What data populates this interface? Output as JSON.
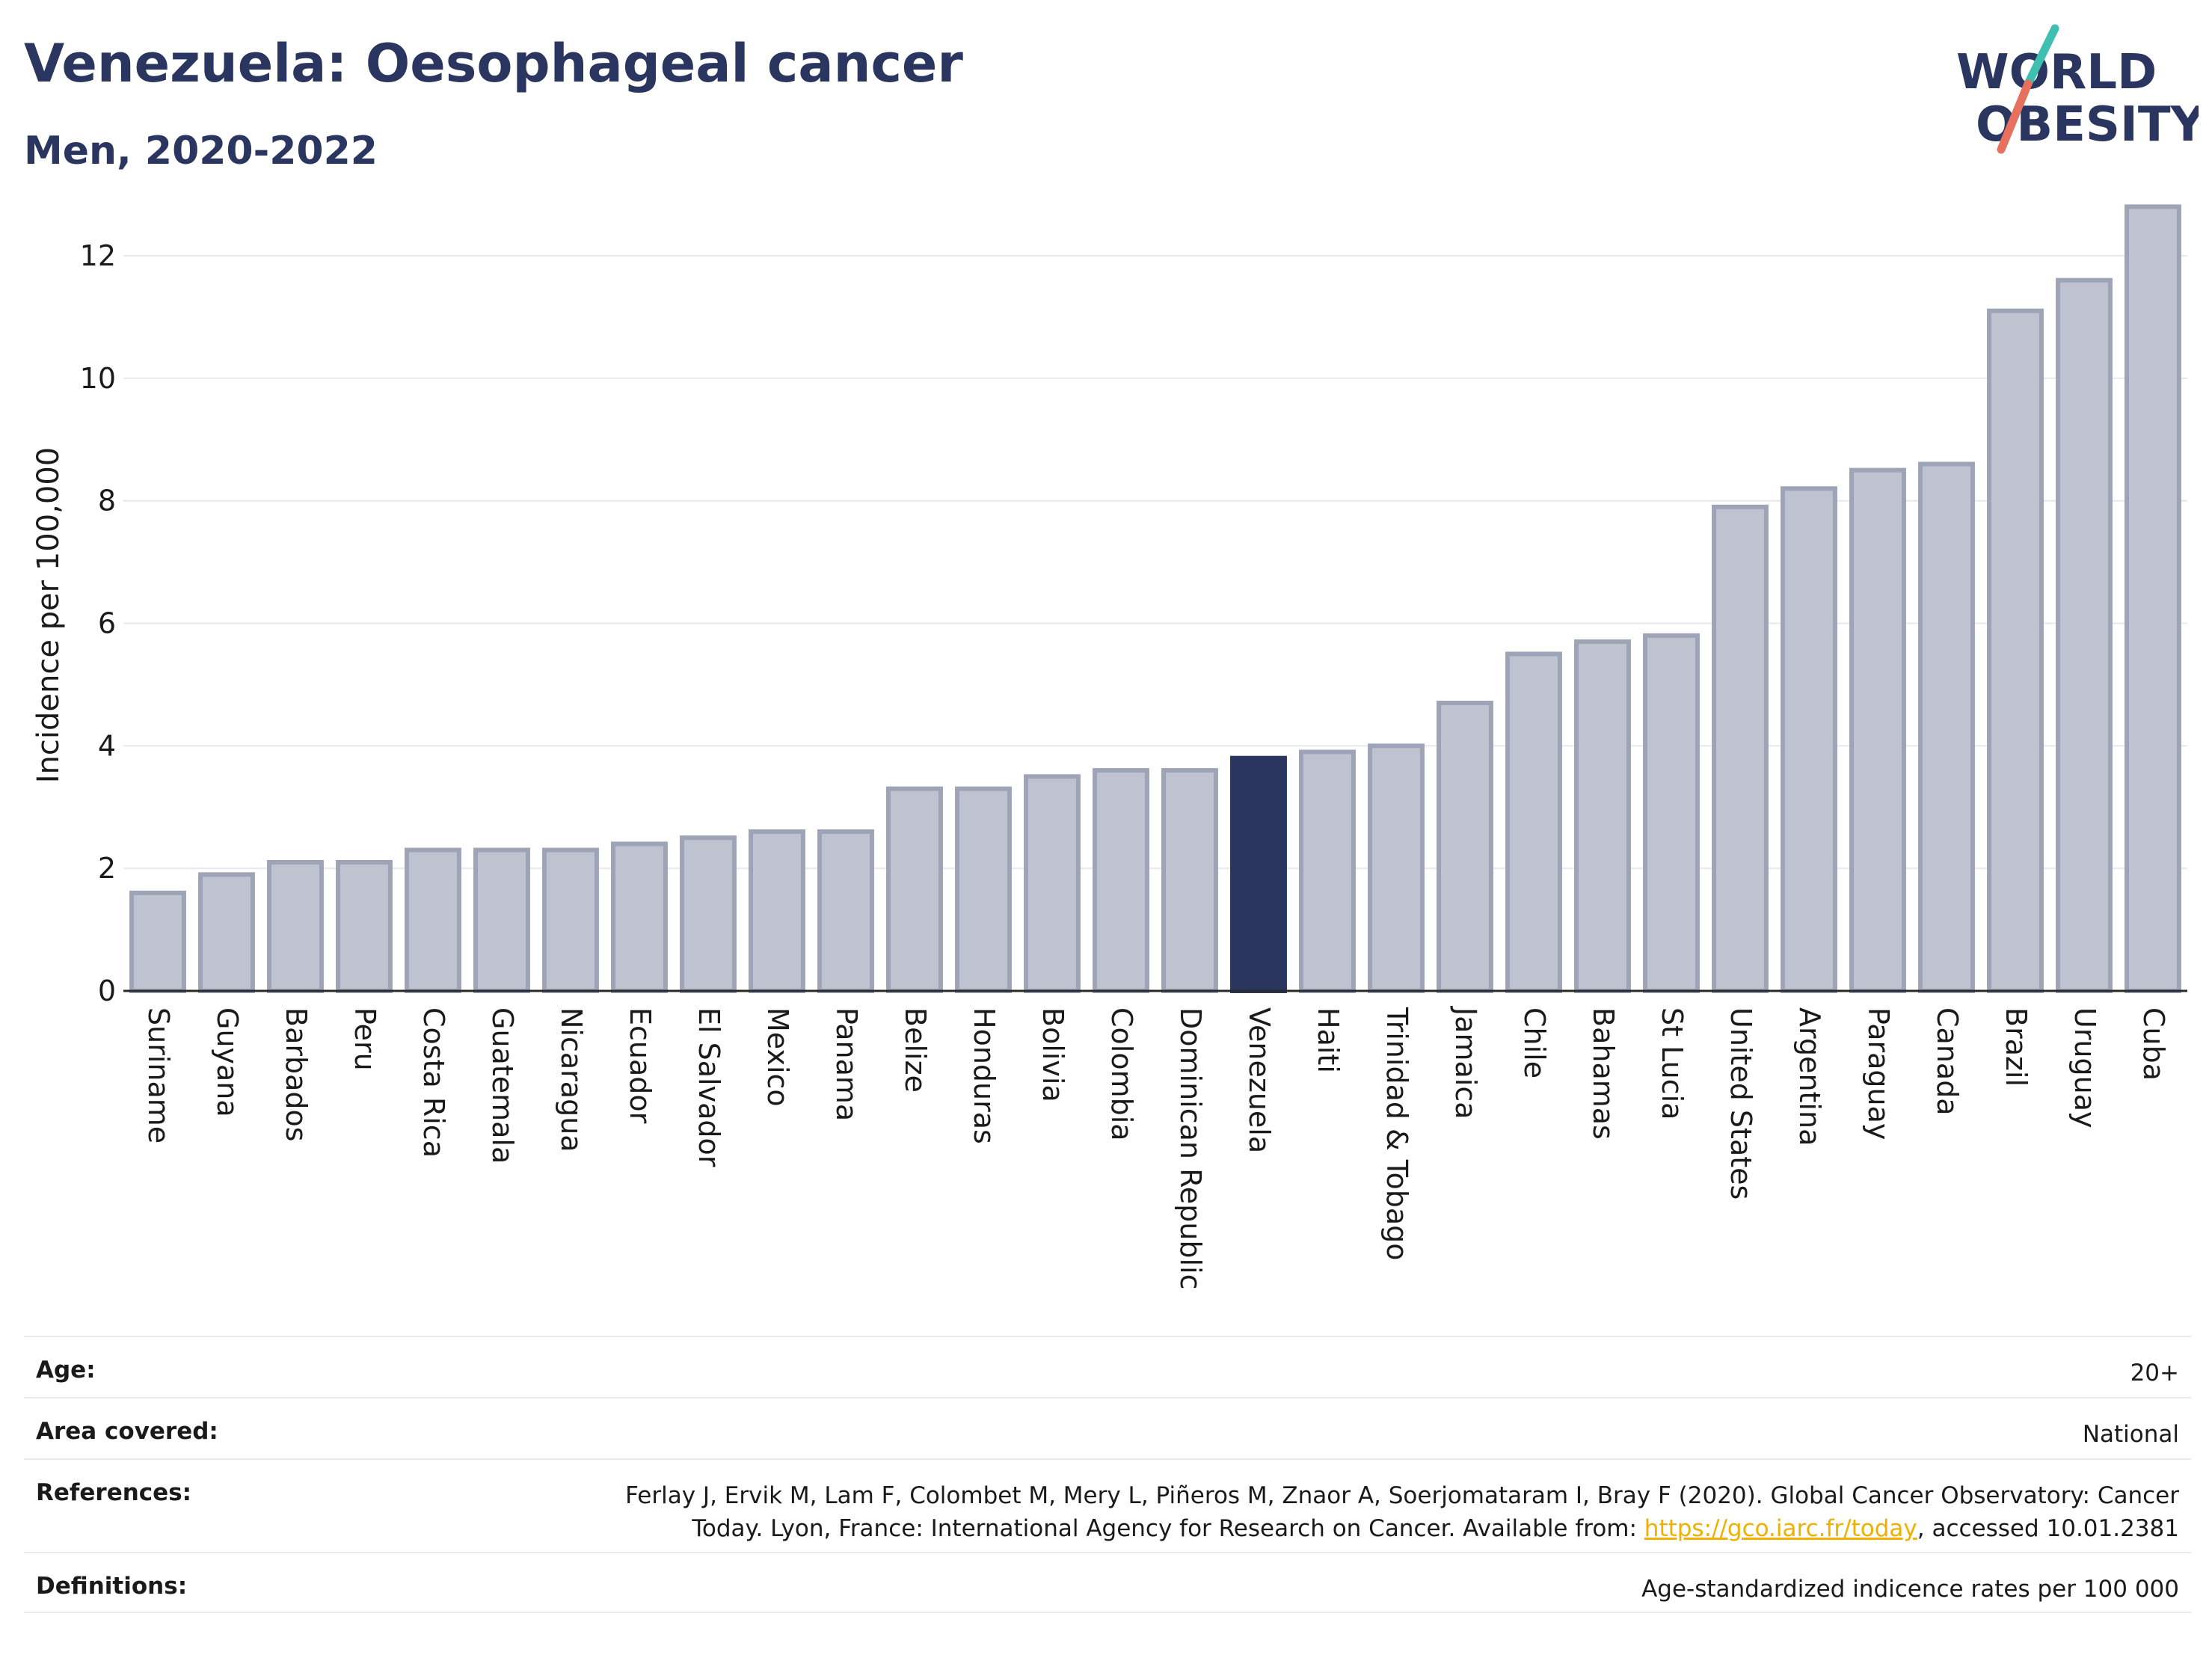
{
  "header": {
    "title": "Venezuela: Oesophageal cancer",
    "subtitle": "Men, 2020-2022"
  },
  "logo": {
    "line1": "WORLD",
    "line2": "OBESITY"
  },
  "colors": {
    "bar": "#bfc3d0",
    "bar_stroke": "#9ea4b8",
    "highlight": "#2a365f",
    "grid": "#e6e8ee",
    "axis": "#2a2a2a",
    "logo_slash_teal": "#3fbfb0",
    "logo_slash_coral": "#e8705e"
  },
  "chart_data": {
    "type": "bar",
    "ylabel": "Incidence per 100,000",
    "ylim": [
      0,
      13
    ],
    "yticks": [
      0,
      2,
      4,
      6,
      8,
      10,
      12
    ],
    "grid": true,
    "highlight": "Venezuela",
    "categories": [
      "Suriname",
      "Guyana",
      "Barbados",
      "Peru",
      "Costa Rica",
      "Guatemala",
      "Nicaragua",
      "Ecuador",
      "El Salvador",
      "Mexico",
      "Panama",
      "Belize",
      "Honduras",
      "Bolivia",
      "Colombia",
      "Dominican Republic",
      "Venezuela",
      "Haiti",
      "Trinidad & Tobago",
      "Jamaica",
      "Chile",
      "Bahamas",
      "St Lucia",
      "United States",
      "Argentina",
      "Paraguay",
      "Canada",
      "Brazil",
      "Uruguay",
      "Cuba"
    ],
    "values": [
      1.6,
      1.9,
      2.1,
      2.1,
      2.3,
      2.3,
      2.3,
      2.4,
      2.5,
      2.6,
      2.6,
      3.3,
      3.3,
      3.5,
      3.6,
      3.6,
      3.8,
      3.9,
      4.0,
      4.7,
      5.5,
      5.7,
      5.8,
      7.9,
      8.2,
      8.5,
      8.6,
      11.1,
      11.6,
      12.8
    ]
  },
  "info": {
    "age_label": "Age:",
    "age_value": "20+",
    "area_label": "Area covered:",
    "area_value": "National",
    "references_label": "References:",
    "references_line1": "Ferlay J, Ervik M, Lam F, Colombet M, Mery L, Piñeros M, Znaor A, Soerjomataram I, Bray F (2020). Global Cancer Observatory: Cancer",
    "references_line2_pre": "Today. Lyon, France: International Agency for Research on Cancer. Available from: ",
    "references_link": "https://gco.iarc.fr/today",
    "references_line2_post": ", accessed 10.01.2381",
    "definitions_label": "Definitions:",
    "definitions_value": "Age-standardized indicence rates per 100 000"
  }
}
